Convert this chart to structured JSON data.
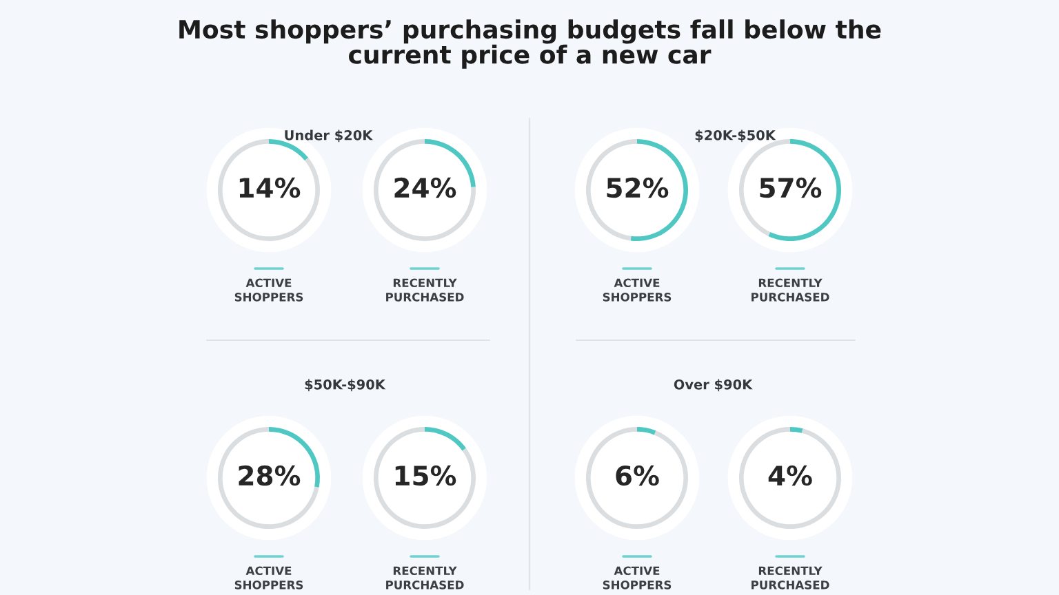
{
  "chart_data": [
    {
      "type": "donut",
      "title": "Most shoppers’ purchasing budgets fall below the\ncurrent price of a new car",
      "subtitle": "Under $20K",
      "xlabel": "ACTIVE\nSHOPPERS",
      "categories": [
        null,
        null
      ],
      "values": [
        14,
        86
      ],
      "colors": [
        "#4fc8c4",
        "#dadee1"
      ],
      "value_labels": [
        "14%",
        null
      ]
    },
    {
      "type": "donut",
      "xlabel": "RECENTLY\nPURCHASED",
      "categories": [
        null,
        null
      ],
      "values": [
        24,
        76
      ],
      "colors": [
        "#4fc8c4",
        "#dadee1"
      ],
      "value_labels": [
        "24%",
        null
      ]
    },
    {
      "type": "donut",
      "subtitle": "$20K-$50K",
      "xlabel": "ACTIVE\nSHOPPERS",
      "categories": [
        null,
        null
      ],
      "values": [
        52,
        48
      ],
      "colors": [
        "#4fc8c4",
        "#dadee1"
      ],
      "value_labels": [
        "52%",
        null
      ]
    },
    {
      "type": "donut",
      "xlabel": "RECENTLY\nPURCHASED",
      "categories": [
        null,
        null
      ],
      "values": [
        57,
        43
      ],
      "colors": [
        "#4fc8c4",
        "#dadee1"
      ],
      "value_labels": [
        "57%",
        null
      ]
    },
    {
      "type": "donut",
      "subtitle": "$50K-$90K",
      "xlabel": "ACTIVE\nSHOPPERS",
      "categories": [
        null,
        null
      ],
      "values": [
        28,
        72
      ],
      "colors": [
        "#4fc8c4",
        "#dadee1"
      ],
      "value_labels": [
        "28%",
        null
      ]
    },
    {
      "type": "donut",
      "xlabel": "RECENTLY\nPURCHASED",
      "categories": [
        null,
        null
      ],
      "values": [
        15,
        85
      ],
      "colors": [
        "#4fc8c4",
        "#dadee1"
      ],
      "value_labels": [
        "15%",
        null
      ]
    },
    {
      "type": "donut",
      "subtitle": "Over $90K",
      "xlabel": "ACTIVE\nSHOPPERS",
      "categories": [
        null,
        null
      ],
      "values": [
        6,
        94
      ],
      "colors": [
        "#4fc8c4",
        "#dadee1"
      ],
      "value_labels": [
        "6%",
        null
      ]
    },
    {
      "type": "donut",
      "xlabel": "RECENTLY\nPURCHASED",
      "categories": [
        null,
        null
      ],
      "values": [
        4,
        96
      ],
      "colors": [
        "#4fc8c4",
        "#dadee1"
      ],
      "value_labels": [
        "4%",
        null
      ]
    }
  ]
}
